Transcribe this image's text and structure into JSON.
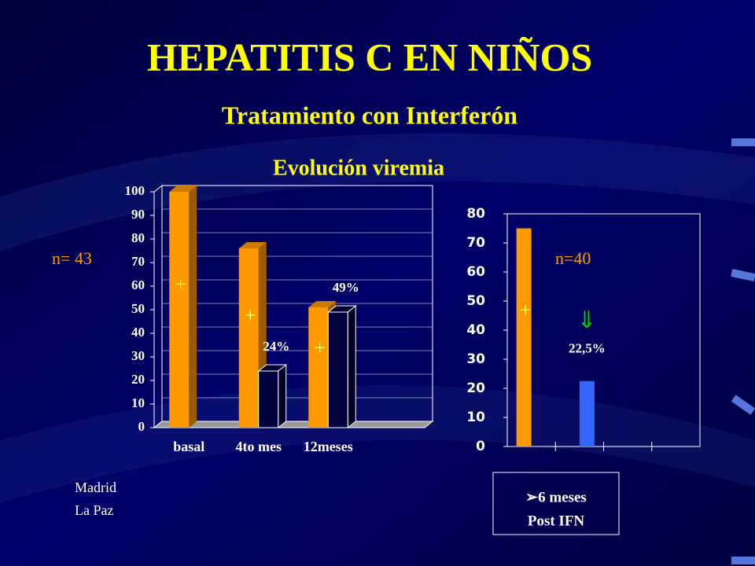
{
  "title": "HEPATITIS C EN NIÑOS",
  "subtitle": "Tratamiento con Interferón",
  "footer": [
    "Madrid",
    "La Paz"
  ],
  "chart_data": [
    {
      "type": "bar",
      "three_d": true,
      "grid": true,
      "title": "Evolución viremia",
      "annotation": "n= 43",
      "categories": [
        "basal",
        "4to mes",
        "12meses"
      ],
      "series": [
        {
          "color": "#ff9900",
          "marker": "+",
          "values": [
            100,
            76,
            51
          ]
        },
        {
          "color": "#000040",
          "values": [
            null,
            24,
            49
          ],
          "value_labels": [
            null,
            "24%",
            "49%"
          ]
        }
      ],
      "ylim": [
        0,
        100
      ],
      "yticks": [
        0,
        10,
        20,
        30,
        40,
        50,
        60,
        70,
        80,
        90,
        100
      ]
    },
    {
      "type": "bar",
      "three_d": false,
      "grid": false,
      "annotation": "n=40",
      "arrow": "⇓",
      "x_label": [
        "➢6 meses",
        "Post IFN"
      ],
      "categories": [
        null,
        null,
        null,
        null
      ],
      "series": [
        {
          "color": "#ff9900",
          "marker": "+",
          "values": [
            75,
            null,
            null,
            null
          ]
        },
        {
          "color": "#3366ff",
          "values": [
            null,
            22.5,
            null,
            null
          ],
          "value_labels": [
            null,
            "22,5%",
            null,
            null
          ]
        }
      ],
      "ylim": [
        0,
        80
      ],
      "yticks": [
        0,
        10,
        20,
        30,
        40,
        50,
        60,
        70,
        80
      ]
    }
  ]
}
